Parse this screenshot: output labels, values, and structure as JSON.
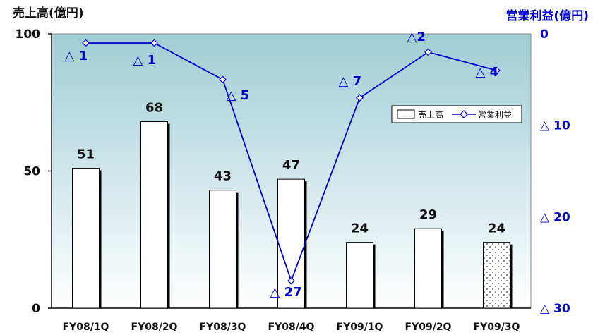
{
  "chart_data": {
    "type": "bar+line",
    "categories": [
      "FY08/1Q",
      "FY08/2Q",
      "FY08/3Q",
      "FY08/4Q",
      "FY09/1Q",
      "FY09/2Q",
      "FY09/3Q"
    ],
    "series": [
      {
        "name": "売上高",
        "type": "bar",
        "axis": "left",
        "values": [
          51,
          68,
          43,
          47,
          24,
          29,
          24
        ],
        "labels": [
          "51",
          "68",
          "43",
          "47",
          "24",
          "29",
          "24"
        ]
      },
      {
        "name": "営業利益",
        "type": "line",
        "axis": "right",
        "values": [
          -1,
          -1,
          -5,
          -27,
          -7,
          -2,
          -4
        ],
        "labels": [
          "△ 1",
          "△ 1",
          "△ 5",
          "△ 27",
          "△ 7",
          "△2",
          "△ 4"
        ]
      }
    ],
    "left_axis": {
      "title": "売上高(億円)",
      "ylim": [
        0,
        100
      ],
      "ticks": [
        0,
        50,
        100
      ],
      "tick_labels": [
        "0",
        "50",
        "100"
      ]
    },
    "right_axis": {
      "title": "営業利益(億円)",
      "ylim": [
        -30,
        0
      ],
      "ticks": [
        0,
        -10,
        -20,
        -30
      ],
      "tick_labels": [
        "0",
        "△ 10",
        "△ 20",
        "△ 30"
      ]
    },
    "legend": {
      "position": "right",
      "entries": [
        "売上高",
        "営業利益"
      ]
    },
    "highlight": {
      "category": "FY09/3Q",
      "style": "dotted"
    },
    "colors": {
      "bar_fill": "#ffffff",
      "bar_edge": "#000000",
      "line": "#0000cc",
      "right_axis_text": "#0000cc",
      "plot_bg_top": "#9fcdd4",
      "plot_bg_bottom": "#ffffff"
    }
  }
}
